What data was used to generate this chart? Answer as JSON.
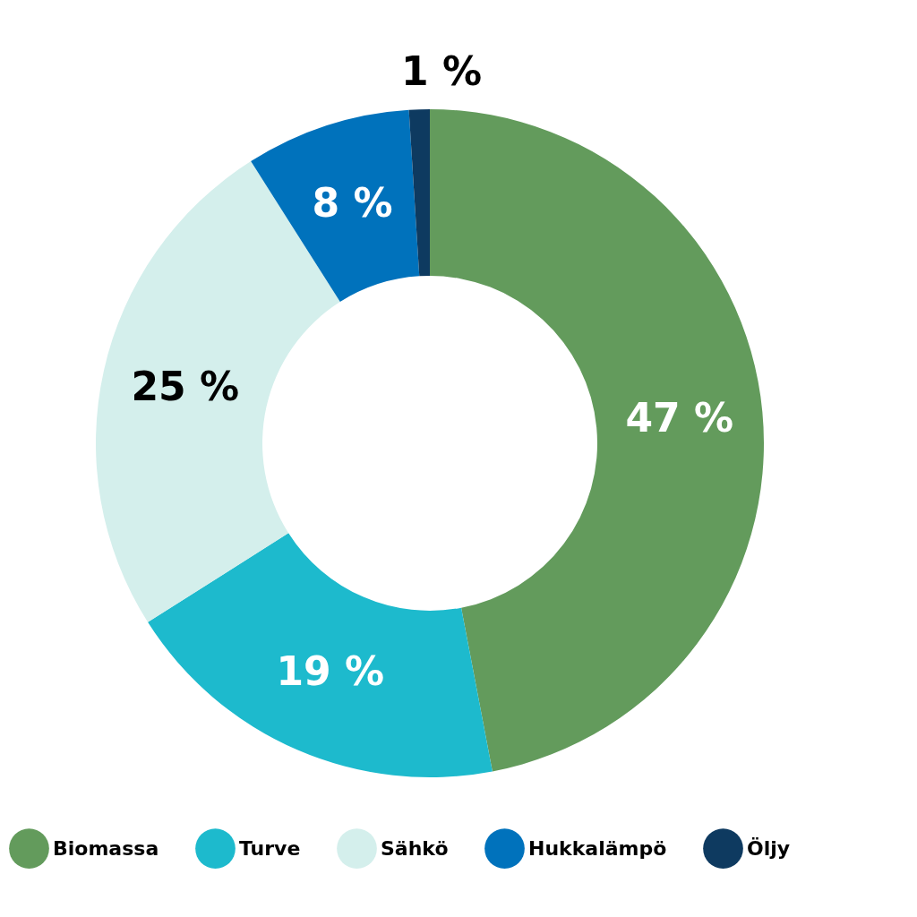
{
  "chart_data": {
    "type": "donut",
    "categories": [
      "Biomassa",
      "Turve",
      "Sähkö",
      "Hukkalämpö",
      "Öljy"
    ],
    "values": [
      47,
      19,
      25,
      8,
      1
    ],
    "colors": [
      "#639b5c",
      "#1dbacd",
      "#d4efec",
      "#0072bc",
      "#0e3a60"
    ],
    "value_labels": [
      "47 %",
      "19 %",
      "25 %",
      "8 %",
      "1 %"
    ],
    "legend": "bottom"
  }
}
